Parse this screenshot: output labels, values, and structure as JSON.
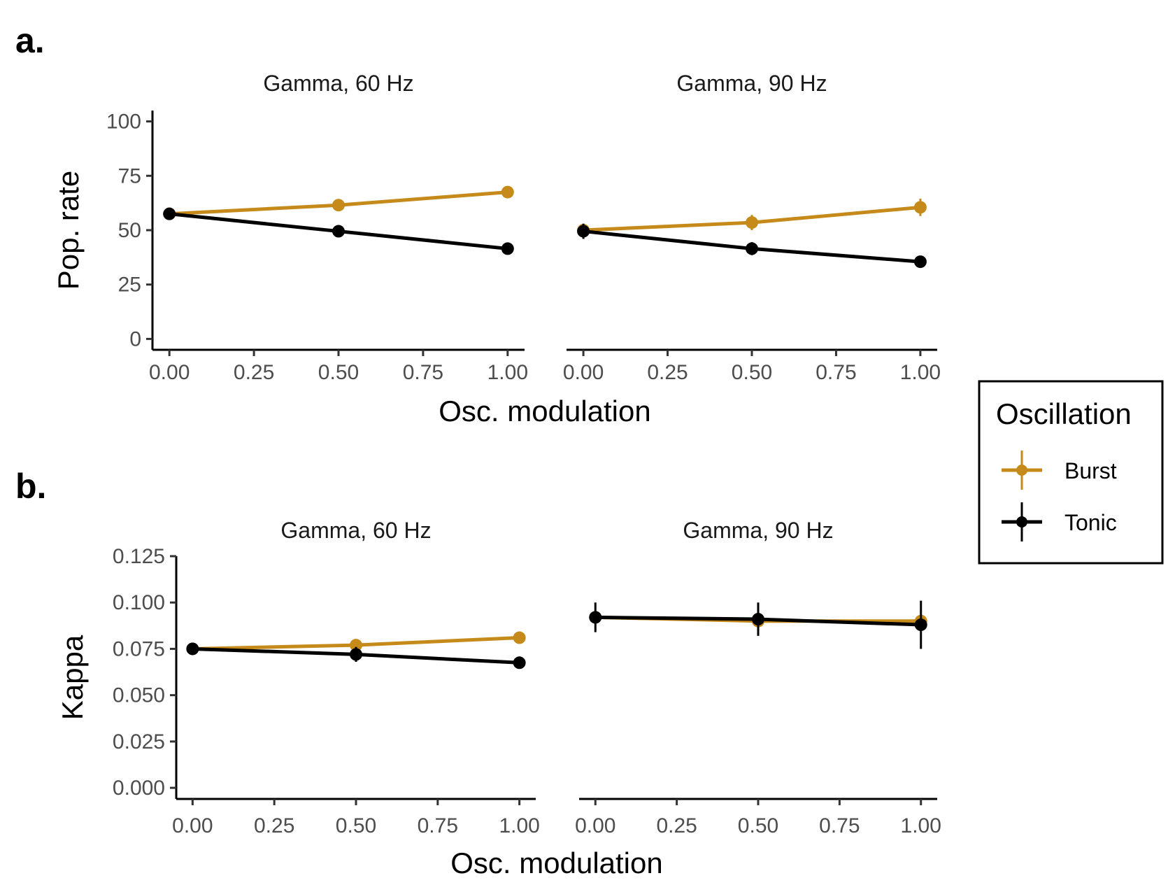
{
  "panels": {
    "a": {
      "letter": "a."
    },
    "b": {
      "letter": "b."
    }
  },
  "legend": {
    "title": "Oscillation",
    "items": [
      {
        "label": "Burst",
        "color": "#C58A1A"
      },
      {
        "label": "Tonic",
        "color": "#000000"
      }
    ]
  },
  "chart_data": [
    {
      "type": "line",
      "panel": "a.",
      "facets": [
        "Gamma, 60 Hz",
        "Gamma, 90 Hz"
      ],
      "xlabel": "Osc. modulation",
      "ylabel": "Pop. rate",
      "x": [
        0,
        0.5,
        1
      ],
      "xticks": [
        "0.00",
        "0.25",
        "0.50",
        "0.75",
        "1.00"
      ],
      "yticks": [
        "0",
        "25",
        "50",
        "75",
        "100"
      ],
      "xlim": [
        -0.05,
        1.05
      ],
      "ylim": [
        -5,
        105
      ],
      "grid": false,
      "legend_position": "right",
      "series": [
        {
          "name": "Burst",
          "color": "#C58A1A",
          "values": {
            "Gamma, 60 Hz": [
              57.5,
              61.5,
              67.5
            ],
            "Gamma, 90 Hz": [
              50,
              53.5,
              60.5
            ]
          },
          "errors": {
            "Gamma, 60 Hz": [
              1.5,
              2.5,
              2.5
            ],
            "Gamma, 90 Hz": [
              2,
              3.5,
              4
            ]
          }
        },
        {
          "name": "Tonic",
          "color": "#000000",
          "values": {
            "Gamma, 60 Hz": [
              57.5,
              49.5,
              41.5
            ],
            "Gamma, 90 Hz": [
              49.5,
              41.5,
              35.5
            ]
          },
          "errors": {
            "Gamma, 60 Hz": [
              2.5,
              1,
              1
            ],
            "Gamma, 90 Hz": [
              3.5,
              3,
              1
            ]
          }
        }
      ]
    },
    {
      "type": "line",
      "panel": "b.",
      "facets": [
        "Gamma, 60 Hz",
        "Gamma, 90 Hz"
      ],
      "xlabel": "Osc. modulation",
      "ylabel": "Kappa",
      "x": [
        0,
        0.5,
        1
      ],
      "xticks": [
        "0.00",
        "0.25",
        "0.50",
        "0.75",
        "1.00"
      ],
      "yticks": [
        "0.000",
        "0.025",
        "0.050",
        "0.075",
        "0.100",
        "0.125"
      ],
      "xlim": [
        -0.05,
        1.05
      ],
      "ylim": [
        -0.006,
        0.125
      ],
      "grid": false,
      "legend_position": "right",
      "series": [
        {
          "name": "Burst",
          "color": "#C58A1A",
          "values": {
            "Gamma, 60 Hz": [
              0.075,
              0.077,
              0.081
            ],
            "Gamma, 90 Hz": [
              0.092,
              0.09,
              0.09
            ]
          },
          "errors": {
            "Gamma, 60 Hz": [
              0.001,
              0.001,
              0.001
            ],
            "Gamma, 90 Hz": [
              0.001,
              0.001,
              0.001
            ]
          }
        },
        {
          "name": "Tonic",
          "color": "#000000",
          "values": {
            "Gamma, 60 Hz": [
              0.075,
              0.072,
              0.0675
            ],
            "Gamma, 90 Hz": [
              0.092,
              0.091,
              0.088
            ]
          },
          "errors": {
            "Gamma, 60 Hz": [
              0.001,
              0.004,
              0.003
            ],
            "Gamma, 90 Hz": [
              0.008,
              0.009,
              0.013
            ]
          }
        }
      ]
    }
  ]
}
